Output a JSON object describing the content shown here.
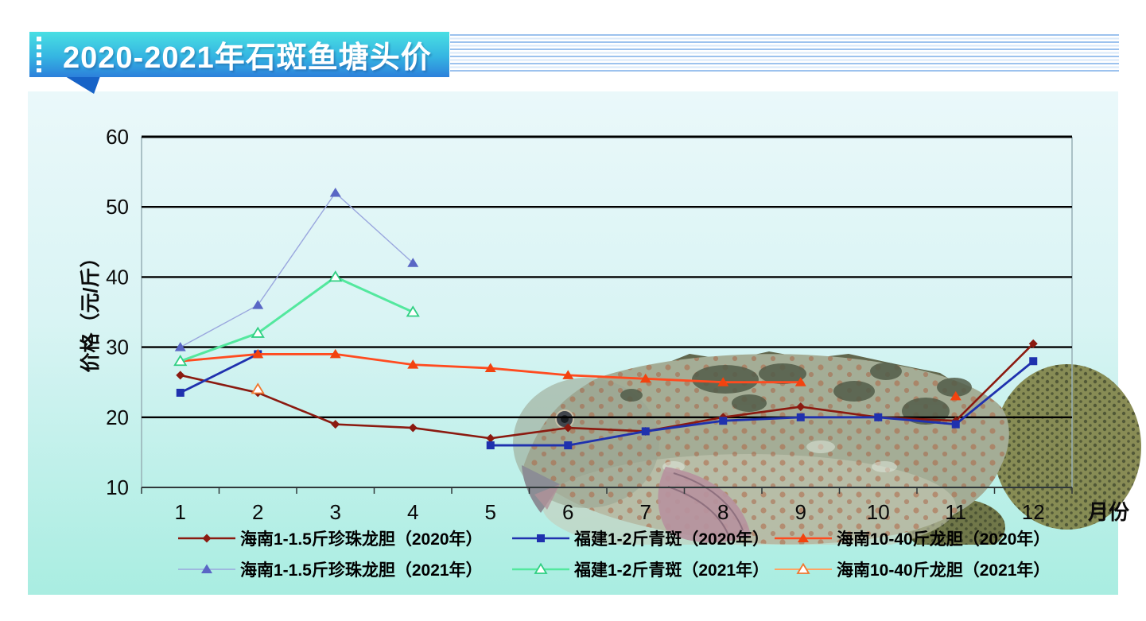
{
  "header": {
    "title": "2020-2021年石斑鱼塘头价"
  },
  "colors": {
    "banner_top": "#49DFE3",
    "banner_bottom": "#2C80DB",
    "banner_tail": "#1763C7",
    "stripe_dark": "#9CC2EE",
    "stripe_light": "#D9E9FA",
    "panel_top": "#EAF8FA",
    "panel_bottom": "#A9EDE1",
    "gridline": "#000000",
    "plot_border": "#97AFB5"
  },
  "chart_data": {
    "type": "line",
    "title": "2020-2021年石斑鱼塘头价",
    "xlabel": "月份",
    "ylabel": "价格（元/斤）",
    "ylim": [
      10,
      60
    ],
    "yticks": [
      10,
      20,
      30,
      40,
      50,
      60
    ],
    "categories": [
      "1",
      "2",
      "3",
      "4",
      "5",
      "6",
      "7",
      "8",
      "9",
      "10",
      "11",
      "12"
    ],
    "grid": "horizontal",
    "legend_position": "bottom",
    "series": [
      {
        "name": "海南1-1.5斤珍珠龙胆（2020年）",
        "marker": "diamond",
        "line_color": "#8B1A10",
        "marker_color": "#8B1A10",
        "line_width": 2.6,
        "values": [
          26,
          23.5,
          19,
          18.5,
          17,
          18.5,
          18,
          20,
          21.5,
          20,
          19.5,
          30.5
        ]
      },
      {
        "name": "福建1-2斤青斑（2020年）",
        "marker": "square",
        "line_color": "#1F31AE",
        "marker_color": "#1F31AE",
        "line_width": 2.8,
        "values": [
          23.5,
          29,
          null,
          null,
          16,
          16,
          18,
          19.5,
          20,
          20,
          19,
          28
        ]
      },
      {
        "name": "海南10-40斤龙胆（2020年）",
        "marker": "triangle",
        "line_color": "#FF4B1F",
        "marker_color": "#F2430F",
        "line_width": 2.8,
        "values": [
          28,
          29,
          29,
          27.5,
          27,
          26,
          25.5,
          25,
          25,
          null,
          23,
          null
        ]
      },
      {
        "name": "海南1-1.5斤珍珠龙胆（2021年）",
        "marker": "triangle",
        "line_color": "#9AA7DE",
        "marker_color": "#5A66C5",
        "line_width": 1.4,
        "values": [
          30,
          36,
          52,
          42,
          null,
          null,
          null,
          null,
          null,
          null,
          null,
          null
        ]
      },
      {
        "name": "福建1-2斤青斑（2021年）",
        "marker": "triangle-open",
        "line_color": "#53E89E",
        "marker_color": "#2FCF82",
        "line_width": 3,
        "values": [
          28,
          32,
          40,
          35,
          null,
          null,
          null,
          null,
          null,
          null,
          null,
          null
        ]
      },
      {
        "name": "海南10-40斤龙胆（2021年）",
        "marker": "triangle-open",
        "line_color": "#FFA362",
        "marker_color": "#F07830",
        "line_width": 2,
        "values": [
          null,
          24,
          null,
          null,
          null,
          null,
          null,
          null,
          null,
          null,
          null,
          null
        ]
      }
    ]
  }
}
